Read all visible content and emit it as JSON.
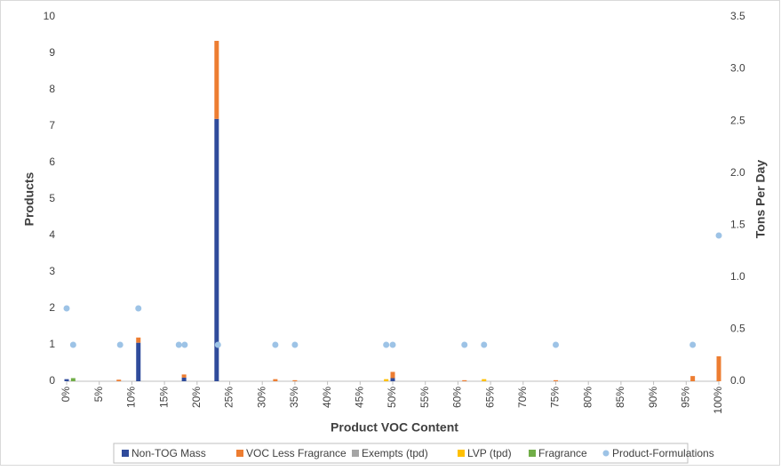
{
  "chart_data": {
    "type": "bar",
    "xlabel": "Product VOC Content",
    "ylabel": "Products",
    "y2label": "Tons Per Day",
    "xlim": [
      0,
      100
    ],
    "xticks": [
      {
        "value": 0,
        "label": "0%"
      },
      {
        "value": 5,
        "label": "5%"
      },
      {
        "value": 10,
        "label": "10%"
      },
      {
        "value": 15,
        "label": "15%"
      },
      {
        "value": 20,
        "label": "20%"
      },
      {
        "value": 25,
        "label": "25%"
      },
      {
        "value": 30,
        "label": "30%"
      },
      {
        "value": 35,
        "label": "35%"
      },
      {
        "value": 40,
        "label": "40%"
      },
      {
        "value": 45,
        "label": "45%"
      },
      {
        "value": 50,
        "label": "50%"
      },
      {
        "value": 55,
        "label": "55%"
      },
      {
        "value": 60,
        "label": "60%"
      },
      {
        "value": 65,
        "label": "65%"
      },
      {
        "value": 70,
        "label": "70%"
      },
      {
        "value": 75,
        "label": "75%"
      },
      {
        "value": 80,
        "label": "80%"
      },
      {
        "value": 85,
        "label": "85%"
      },
      {
        "value": 90,
        "label": "90%"
      },
      {
        "value": 95,
        "label": "95%"
      },
      {
        "value": 100,
        "label": "100%"
      }
    ],
    "ylim": [
      0,
      10
    ],
    "yticks": [
      0,
      1,
      2,
      3,
      4,
      5,
      6,
      7,
      8,
      9,
      10
    ],
    "y2lim": [
      0,
      3.5
    ],
    "y2ticks": [
      {
        "value": 0,
        "label": "0.0"
      },
      0.5,
      {
        "value": 1,
        "label": "1.0"
      },
      1.5,
      {
        "value": 2,
        "label": "2.0"
      },
      2.5,
      {
        "value": 3,
        "label": "3.0"
      },
      3.5
    ],
    "series": [
      {
        "name": "Non-TOG Mass",
        "type": "bar",
        "axis": "y2",
        "color": "#2f4b9b",
        "x": [
          0,
          11,
          18,
          23,
          50
        ],
        "values": [
          0.02,
          0.37,
          0.035,
          2.52,
          0.03
        ]
      },
      {
        "name": "VOC Less Fragrance",
        "type": "bar",
        "axis": "y2",
        "color": "#ed7d31",
        "x": [
          8,
          11,
          18,
          23,
          32,
          35,
          50,
          61,
          75,
          96,
          100
        ],
        "values": [
          0.015,
          0.05,
          0.03,
          0.75,
          0.02,
          0.01,
          0.06,
          0.01,
          0.01,
          0.05,
          0.24
        ]
      },
      {
        "name": "Exempts (tpd)",
        "type": "bar",
        "axis": "y2",
        "color": "#a5a5a5",
        "x": [],
        "values": []
      },
      {
        "name": "LVP (tpd)",
        "type": "bar",
        "axis": "y2",
        "color": "#ffc000",
        "x": [
          49,
          64
        ],
        "values": [
          0.02,
          0.02
        ]
      },
      {
        "name": "Fragrance",
        "type": "bar",
        "axis": "y2",
        "color": "#70ad47",
        "x": [
          1
        ],
        "values": [
          0.03
        ]
      },
      {
        "name": "Product-Formulations",
        "type": "scatter",
        "color": "#9dc3e6",
        "x": [
          0,
          1,
          8.2,
          11,
          17.2,
          18.1,
          23.2,
          32,
          35,
          49,
          50,
          61,
          64,
          75,
          96,
          100
        ],
        "values": [
          2,
          1,
          1,
          2,
          1,
          1,
          1,
          1,
          1,
          1,
          1,
          1,
          1,
          1,
          1,
          4
        ]
      }
    ]
  }
}
